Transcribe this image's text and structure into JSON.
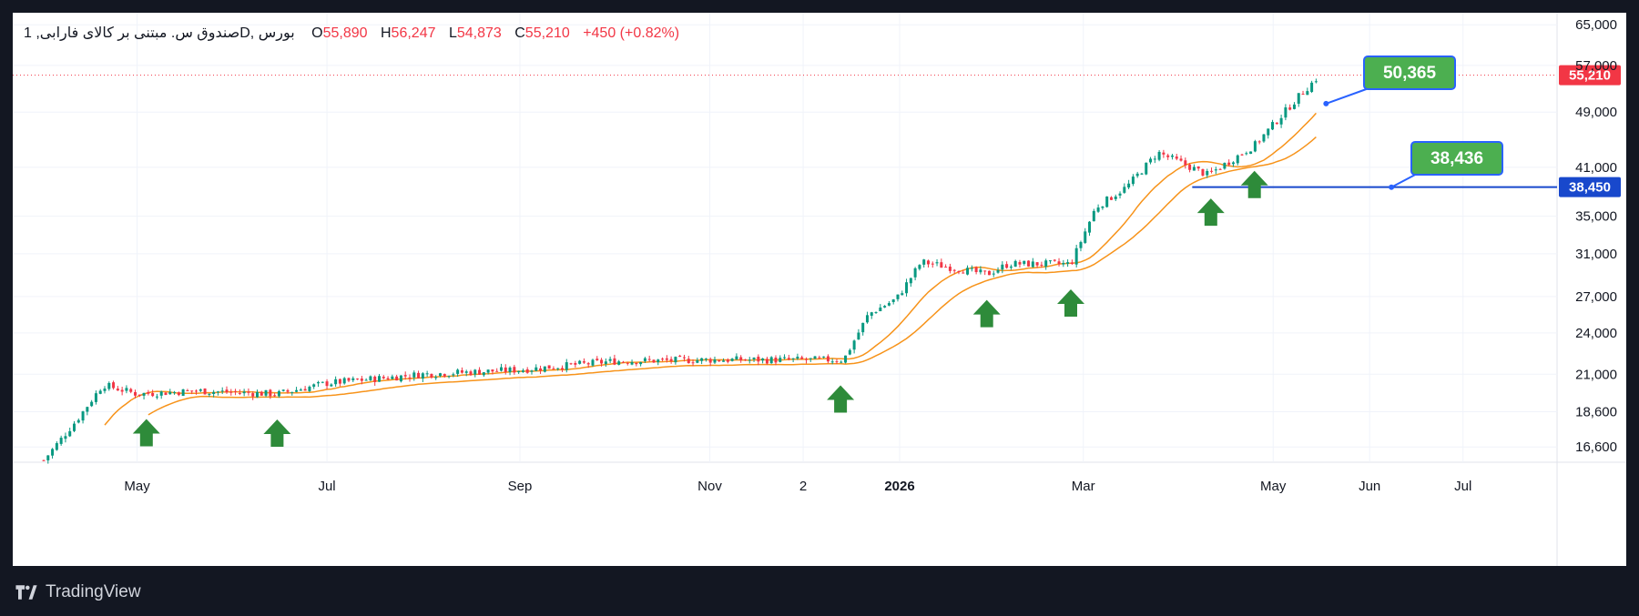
{
  "legend": {
    "symbol": "صندوق س. مبتنی بر کالای فارابی, 1D, بورس",
    "open_label": "O",
    "open": "55,890",
    "high_label": "H",
    "high": "56,247",
    "low_label": "L",
    "low": "54,873",
    "close_label": "C",
    "close": "55,210",
    "change": "+450 (+0.82%)"
  },
  "branding": {
    "name": "TradingView"
  },
  "colors": {
    "up": "#089981",
    "down": "#f23645",
    "ma": "#f7931a",
    "level": "#1848cc",
    "callout": "#4caf50",
    "arrow": "#2e8b3a"
  },
  "chart_data": {
    "type": "candlestick",
    "x_labels": [
      {
        "text": "May",
        "date": "2025-05-01"
      },
      {
        "text": "Jul",
        "date": "2025-07-01"
      },
      {
        "text": "Sep",
        "date": "2025-09-01"
      },
      {
        "text": "Nov",
        "date": "2025-11-01"
      },
      {
        "text": "2",
        "date": "2025-12-01"
      },
      {
        "text": "2026",
        "date": "2026-01-01"
      },
      {
        "text": "Mar",
        "date": "2026-03-01"
      },
      {
        "text": "May",
        "date": "2026-05-01"
      },
      {
        "text": "Jun",
        "date": "2026-06-01"
      },
      {
        "text": "Jul",
        "date": "2026-07-01"
      }
    ],
    "y_ticks": [
      "65,000",
      "57,000",
      "49,000",
      "41,000",
      "35,000",
      "31,000",
      "27,000",
      "24,000",
      "21,000",
      "18,600",
      "16,600"
    ],
    "y_scale": "log",
    "y_range": [
      15800,
      66000
    ],
    "last_price": "55,210",
    "level_line": {
      "price": "38,450",
      "value": 38450
    },
    "callouts": [
      {
        "text": "50,365",
        "value": 50365
      },
      {
        "text": "38,436",
        "value": 38436
      }
    ],
    "arrows_dates": [
      "2025-05-04",
      "2025-06-15",
      "2025-12-13",
      "2026-01-29",
      "2026-02-25",
      "2026-04-11",
      "2026-04-25"
    ],
    "price_path": [
      {
        "date": "2025-04-01",
        "value": 15900
      },
      {
        "date": "2025-04-12",
        "value": 18200
      },
      {
        "date": "2025-04-20",
        "value": 20300
      },
      {
        "date": "2025-05-01",
        "value": 19700
      },
      {
        "date": "2025-05-20",
        "value": 19900
      },
      {
        "date": "2025-06-15",
        "value": 19700
      },
      {
        "date": "2025-07-01",
        "value": 20400
      },
      {
        "date": "2025-08-01",
        "value": 21000
      },
      {
        "date": "2025-09-01",
        "value": 21300
      },
      {
        "date": "2025-10-01",
        "value": 21900
      },
      {
        "date": "2025-11-01",
        "value": 22000
      },
      {
        "date": "2025-12-14",
        "value": 22000
      },
      {
        "date": "2025-12-22",
        "value": 25500
      },
      {
        "date": "2025-12-31",
        "value": 26800
      },
      {
        "date": "2026-01-08",
        "value": 30200
      },
      {
        "date": "2026-01-29",
        "value": 29000
      },
      {
        "date": "2026-02-05",
        "value": 30000
      },
      {
        "date": "2026-02-25",
        "value": 30000
      },
      {
        "date": "2026-03-05",
        "value": 36000
      },
      {
        "date": "2026-03-15",
        "value": 38500
      },
      {
        "date": "2026-03-25",
        "value": 43000
      },
      {
        "date": "2026-04-10",
        "value": 40000
      },
      {
        "date": "2026-04-25",
        "value": 44000
      },
      {
        "date": "2026-05-10",
        "value": 52000
      },
      {
        "date": "2026-05-16",
        "value": 55210
      }
    ]
  }
}
